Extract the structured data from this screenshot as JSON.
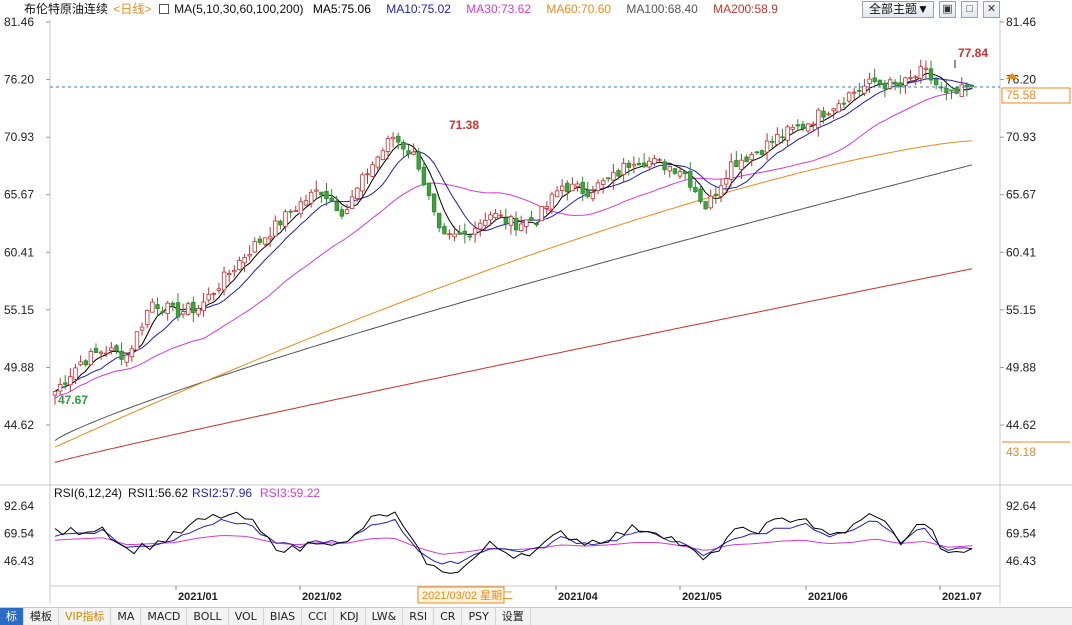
{
  "header": {
    "instrument": "布伦特原油连续",
    "period_link": "<日线>",
    "ma_params": "MA(5,10,30,60,100,200)",
    "ma5": "MA5:75.06",
    "ma10": "MA10:75.02",
    "ma30": "MA30:73.62",
    "ma60": "MA60:70.60",
    "ma100": "MA100:68.40",
    "ma200": "MA200:58.9",
    "theme_button": "全部主题",
    "colors": {
      "ma5": "#000000",
      "ma10": "#1f1fb4",
      "ma30": "#d43bd4",
      "ma60": "#e98a1a",
      "ma100": "#555555",
      "ma200": "#c8322a"
    }
  },
  "price_axis": {
    "left_ticks": [
      "81.46",
      "76.20",
      "70.93",
      "65.67",
      "60.41",
      "55.15",
      "49.88",
      "44.62"
    ],
    "right_ticks": [
      "81.46",
      "76.20",
      "70.93",
      "65.67",
      "60.41",
      "55.15",
      "49.88",
      "44.62"
    ],
    "current_price_label": "75.58",
    "right_bottom_label": "43.18"
  },
  "annotations": {
    "high": "77.84",
    "mid_high": "71.38",
    "low": "47.67"
  },
  "rsi": {
    "label": "RSI(6,12,24)",
    "rsi1": "RSI1:56.62",
    "rsi2": "RSI2:57.96",
    "rsi3": "RSI3:59.22",
    "left_ticks": [
      "92.64",
      "69.54",
      "46.43"
    ],
    "right_ticks": [
      "92.64",
      "69.54",
      "46.43"
    ]
  },
  "date_axis": {
    "labels": [
      "2021/01",
      "2021/02",
      "2021/04",
      "2021/05",
      "2021/06",
      "2021.07"
    ],
    "cursor_label": "2021/03/02 星期二"
  },
  "bottom_tabs": [
    "标",
    "模板",
    "VIP指标",
    "MA",
    "MACD",
    "BOLL",
    "VOL",
    "BIAS",
    "CCI",
    "KDJ",
    "LW&",
    "RSI",
    "CR",
    "PSY",
    "设置"
  ],
  "chart_data": {
    "type": "line",
    "description_type": "candlestick",
    "series": [
      {
        "name": "MA5",
        "last": 75.06
      },
      {
        "name": "MA10",
        "last": 75.02
      },
      {
        "name": "MA30",
        "last": 73.62
      },
      {
        "name": "MA60",
        "last": 70.6
      },
      {
        "name": "MA100",
        "last": 68.4
      },
      {
        "name": "MA200",
        "last": 58.9
      }
    ],
    "x": [
      "2021/01",
      "2021/02",
      "2021/03",
      "2021/04",
      "2021/05",
      "2021/06",
      "2021/07"
    ],
    "close_path": [
      47.7,
      50.3,
      51.5,
      51.0,
      55.9,
      54.9,
      55.4,
      58.0,
      60.5,
      62.5,
      64.6,
      66.2,
      64.0,
      68.0,
      71.0,
      69.0,
      61.5,
      62.0,
      64.0,
      63.0,
      63.5,
      66.5,
      66.0,
      67.0,
      69.0,
      68.5,
      68.0,
      64.5,
      68.5,
      69.5,
      71.0,
      72.0,
      73.5,
      75.0,
      76.0,
      75.5,
      77.0,
      74.5,
      75.58
    ],
    "ylim": [
      40.0,
      84.0
    ],
    "rsi_ylim": [
      35.0,
      100.0
    ],
    "rsi1_path": [
      70,
      72,
      75,
      55,
      60,
      68,
      80,
      85,
      82,
      60,
      55,
      66,
      58,
      80,
      88,
      55,
      35,
      42,
      60,
      52,
      56,
      70,
      62,
      66,
      74,
      72,
      60,
      45,
      70,
      72,
      80,
      84,
      66,
      74,
      88,
      62,
      80,
      50,
      56.62
    ],
    "rsi2_path": [
      68,
      70,
      72,
      57,
      60,
      65,
      76,
      80,
      78,
      62,
      58,
      64,
      60,
      76,
      82,
      57,
      42,
      48,
      58,
      55,
      56,
      66,
      61,
      63,
      70,
      69,
      60,
      50,
      66,
      68,
      74,
      78,
      66,
      70,
      82,
      63,
      74,
      55,
      57.96
    ],
    "rsi3_path": [
      64,
      65,
      66,
      60,
      61,
      62,
      66,
      68,
      67,
      62,
      60,
      62,
      61,
      65,
      66,
      58,
      52,
      54,
      57,
      56,
      57,
      60,
      59,
      60,
      62,
      62,
      59,
      55,
      60,
      61,
      63,
      64,
      61,
      62,
      65,
      61,
      63,
      58,
      59.22
    ]
  }
}
